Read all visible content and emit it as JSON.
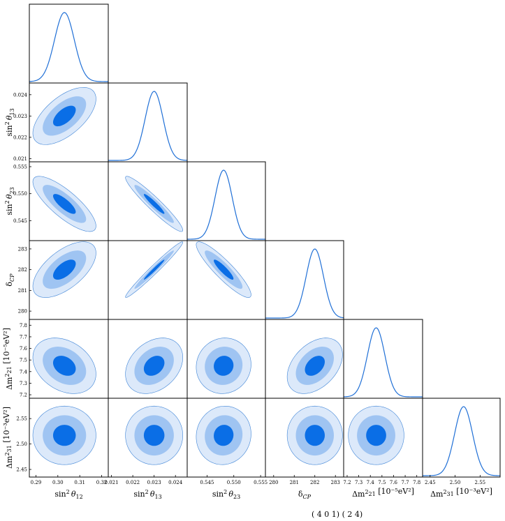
{
  "chart_data": {
    "type": "corner",
    "parameters": [
      {
        "id": "s12",
        "label": "sin² θ₁₂",
        "tex": [
          "sin",
          "2",
          "θ",
          "12"
        ],
        "range": [
          0.287,
          0.323
        ],
        "mean": 0.303,
        "sigma": 0.0045,
        "ticks": [
          0.29,
          0.3,
          0.31,
          0.32
        ],
        "tick_labels": [
          "0.29",
          "0.30",
          "0.31",
          "0.32"
        ]
      },
      {
        "id": "s13",
        "label": "sin² θ₁₃",
        "tex": [
          "sin",
          "2",
          "θ",
          "13"
        ],
        "range": [
          0.02085,
          0.02455
        ],
        "mean": 0.023,
        "sigma": 0.00042,
        "ticks": [
          0.021,
          0.022,
          0.023,
          0.024
        ],
        "tick_labels": [
          "0.021",
          "0.022",
          "0.023",
          "0.024"
        ]
      },
      {
        "id": "s23",
        "label": "sin² θ₂₃",
        "tex": [
          "sin",
          "2",
          "θ",
          "23"
        ],
        "range": [
          0.5413,
          0.5559
        ],
        "mean": 0.5481,
        "sigma": 0.0016,
        "ticks": [
          0.545,
          0.55,
          0.555
        ],
        "tick_labels": [
          "0.545",
          "0.550",
          "0.555"
        ]
      },
      {
        "id": "dcp",
        "label": "δ_CP",
        "tex": [
          "δ",
          "",
          "",
          "CP"
        ],
        "range": [
          279.6,
          283.4
        ],
        "mean": 282.0,
        "sigma": 0.42,
        "ticks": [
          280,
          281,
          282,
          283
        ],
        "tick_labels": [
          "280",
          "281",
          "282",
          "283"
        ]
      },
      {
        "id": "dm21",
        "label": "Δm²₂₁ [10⁻⁵eV²]",
        "tex": [
          "Δm",
          "2",
          "",
          "21"
        ],
        "unit": "[10⁻⁵eV²]",
        "range": [
          7.17,
          7.85
        ],
        "mean": 7.45,
        "sigma": 0.075,
        "ticks": [
          7.2,
          7.3,
          7.4,
          7.5,
          7.6,
          7.7,
          7.8
        ],
        "tick_labels": [
          "7.2",
          "7.3",
          "7.4",
          "7.5",
          "7.6",
          "7.7",
          "7.8"
        ]
      },
      {
        "id": "dm31",
        "label": "Δm²₃₁ [10⁻³eV²]",
        "tex": [
          "Δm",
          "2",
          "",
          "31"
        ],
        "unit": "[10⁻³eV²]",
        "range": [
          2.435,
          2.59
        ],
        "mean": 2.517,
        "sigma": 0.018,
        "ticks": [
          2.45,
          2.5,
          2.55
        ],
        "tick_labels": [
          "2.45",
          "2.50",
          "2.55"
        ]
      }
    ],
    "correlations": [
      [
        1,
        0.6,
        -0.8,
        0.6,
        -0.3,
        0.0
      ],
      [
        0.6,
        1,
        -0.95,
        0.98,
        0.3,
        0.0
      ],
      [
        -0.8,
        -0.95,
        1,
        -0.9,
        0.05,
        0.05
      ],
      [
        0.6,
        0.98,
        -0.9,
        1,
        0.4,
        0.0
      ],
      [
        -0.3,
        0.3,
        0.05,
        0.4,
        1,
        0.0
      ],
      [
        0.0,
        0.0,
        0.05,
        0.0,
        0.0,
        1
      ]
    ],
    "credible_levels": [
      "1σ",
      "2σ",
      "3σ"
    ],
    "colors": {
      "inner": "#0a6ee6",
      "middle": "#9fc4f2",
      "outer": "#dce9fa",
      "edge": "#3d83d6",
      "pdf": "#1f6fd6"
    },
    "footnote": "(    4 0 1)        (  2 4)"
  }
}
